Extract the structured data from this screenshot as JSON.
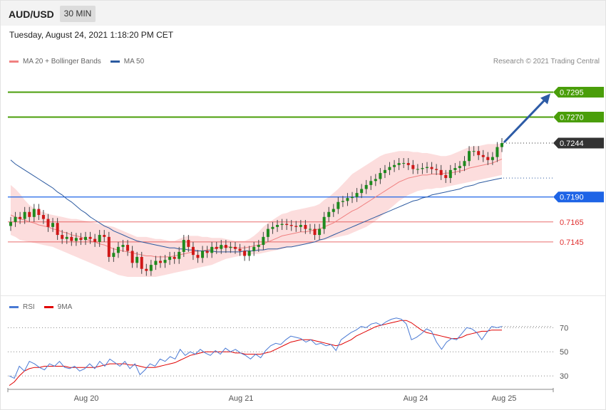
{
  "header": {
    "symbol": "AUD/USD",
    "timeframe": "30 MIN"
  },
  "datetime": "Tuesday, August 24, 2021 1:18:20 PM CET",
  "legend": {
    "ma20": {
      "label": "MA 20 + Bollinger Bands",
      "color": "#f08080"
    },
    "ma50": {
      "label": "MA 50",
      "color": "#2c5aa0"
    }
  },
  "credit": "Research © 2021 Trading Central",
  "rsi_legend": {
    "rsi": {
      "label": "RSI",
      "color": "#4a7ad4"
    },
    "ma9": {
      "label": "9MA",
      "color": "#e00000"
    }
  },
  "chart_data": {
    "type": "candlestick",
    "x_labels": [
      "Aug 20",
      "Aug 21",
      "Aug 24",
      "Aug 25"
    ],
    "ylim": [
      0.7095,
      0.7316
    ],
    "levels": [
      {
        "value": 0.7295,
        "label": "0.7295",
        "color": "#4a9e0a",
        "style": "tag"
      },
      {
        "value": 0.727,
        "label": "0.7270",
        "color": "#4a9e0a",
        "style": "tag"
      },
      {
        "value": 0.7244,
        "label": "0.7244",
        "color": "#333333",
        "style": "current"
      },
      {
        "value": 0.719,
        "label": "0.7190",
        "color": "#1e64e6",
        "style": "tag"
      },
      {
        "value": 0.7165,
        "label": "0.7165",
        "color": "#e03030",
        "style": "text"
      },
      {
        "value": 0.7145,
        "label": "0.7145",
        "color": "#e03030",
        "style": "text"
      }
    ],
    "closes": [
      0.7165,
      0.717,
      0.7168,
      0.7175,
      0.717,
      0.7178,
      0.7172,
      0.7168,
      0.716,
      0.7164,
      0.7152,
      0.7148,
      0.715,
      0.7146,
      0.7149,
      0.7147,
      0.715,
      0.7148,
      0.7145,
      0.7152,
      0.715,
      0.713,
      0.7134,
      0.714,
      0.7142,
      0.7136,
      0.7124,
      0.713,
      0.7118,
      0.7116,
      0.7122,
      0.7126,
      0.7124,
      0.7127,
      0.713,
      0.7128,
      0.7135,
      0.7147,
      0.714,
      0.7132,
      0.7129,
      0.7136,
      0.7134,
      0.714,
      0.7138,
      0.7142,
      0.7139,
      0.714,
      0.7138,
      0.7136,
      0.7131,
      0.7136,
      0.714,
      0.7142,
      0.715,
      0.7158,
      0.716,
      0.7162,
      0.7163,
      0.7162,
      0.7161,
      0.716,
      0.7162,
      0.7158,
      0.7158,
      0.7152,
      0.7158,
      0.717,
      0.7175,
      0.7178,
      0.7185,
      0.7186,
      0.7189,
      0.719,
      0.7194,
      0.7198,
      0.7202,
      0.7206,
      0.7208,
      0.7214,
      0.7217,
      0.722,
      0.7222,
      0.7224,
      0.7224,
      0.7222,
      0.7218,
      0.7218,
      0.7219,
      0.722,
      0.7218,
      0.7217,
      0.7212,
      0.7209,
      0.7217,
      0.7219,
      0.7221,
      0.7226,
      0.7236,
      0.7236,
      0.7232,
      0.723,
      0.7227,
      0.723,
      0.724,
      0.7244
    ],
    "ma20": [
      0.7172,
      0.717,
      0.7168,
      0.7167,
      0.7165,
      0.7164,
      0.7162,
      0.7161,
      0.716,
      0.7158,
      0.7157,
      0.7155,
      0.7154,
      0.7152,
      0.7151,
      0.715,
      0.7148,
      0.7146,
      0.7145,
      0.7143,
      0.7142,
      0.714,
      0.7138,
      0.7137,
      0.7136,
      0.7135,
      0.7134,
      0.7133,
      0.7132,
      0.7131,
      0.7131,
      0.713,
      0.713,
      0.713,
      0.713,
      0.7131,
      0.7132,
      0.7133,
      0.7134,
      0.7135,
      0.7136,
      0.7136,
      0.7137,
      0.7138,
      0.7139,
      0.714,
      0.714,
      0.714,
      0.7139,
      0.7139,
      0.7139,
      0.714,
      0.7141,
      0.7142,
      0.7143,
      0.7145,
      0.7147,
      0.7149,
      0.7151,
      0.7152,
      0.7153,
      0.7154,
      0.7155,
      0.7155,
      0.7156,
      0.7157,
      0.7158,
      0.716,
      0.7162,
      0.7164,
      0.7167,
      0.717,
      0.7173,
      0.7176,
      0.7178,
      0.7181,
      0.7184,
      0.7187,
      0.719,
      0.7193,
      0.7196,
      0.7199,
      0.7202,
      0.7205,
      0.7207,
      0.7209,
      0.721,
      0.7211,
      0.7212,
      0.7212,
      0.7213,
      0.7213,
      0.7213,
      0.7214,
      0.7214,
      0.7215,
      0.7216,
      0.7217,
      0.7219,
      0.722,
      0.7221,
      0.7222,
      0.7223,
      0.7224,
      0.7226,
      0.7228
    ],
    "band_upper": [
      0.7202,
      0.7198,
      0.7193,
      0.7187,
      0.7182,
      0.7179,
      0.7176,
      0.7175,
      0.7173,
      0.7172,
      0.7171,
      0.717,
      0.7169,
      0.7168,
      0.7168,
      0.7167,
      0.7166,
      0.7165,
      0.7164,
      0.7163,
      0.7162,
      0.7161,
      0.716,
      0.7158,
      0.7156,
      0.7154,
      0.7152,
      0.715,
      0.715,
      0.715,
      0.7149,
      0.7148,
      0.7148,
      0.7147,
      0.7146,
      0.7146,
      0.7148,
      0.715,
      0.7151,
      0.7151,
      0.7151,
      0.715,
      0.715,
      0.7149,
      0.7149,
      0.7149,
      0.7148,
      0.7147,
      0.7146,
      0.7146,
      0.7146,
      0.7148,
      0.7151,
      0.7155,
      0.716,
      0.7164,
      0.7167,
      0.717,
      0.7173,
      0.7174,
      0.7176,
      0.7177,
      0.7178,
      0.7179,
      0.718,
      0.7181,
      0.7183,
      0.7187,
      0.719,
      0.7194,
      0.7198,
      0.7203,
      0.7208,
      0.7213,
      0.7216,
      0.7219,
      0.7222,
      0.7225,
      0.7228,
      0.7231,
      0.7233,
      0.7234,
      0.7235,
      0.7236,
      0.7236,
      0.7236,
      0.7235,
      0.7235,
      0.7234,
      0.7234,
      0.7233,
      0.7232,
      0.7231,
      0.7231,
      0.7232,
      0.7234,
      0.7236,
      0.7238,
      0.724,
      0.7241,
      0.7241,
      0.7242,
      0.7243,
      0.7243,
      0.7243,
      0.7244
    ],
    "band_lower": [
      0.7152,
      0.715,
      0.7147,
      0.7146,
      0.7145,
      0.7144,
      0.7143,
      0.7142,
      0.7141,
      0.714,
      0.7138,
      0.7136,
      0.7134,
      0.7132,
      0.713,
      0.7128,
      0.7126,
      0.7124,
      0.7122,
      0.712,
      0.7118,
      0.7116,
      0.7114,
      0.7112,
      0.7111,
      0.711,
      0.711,
      0.711,
      0.711,
      0.711,
      0.711,
      0.711,
      0.7111,
      0.7112,
      0.7113,
      0.7114,
      0.7115,
      0.7116,
      0.7117,
      0.7118,
      0.7119,
      0.712,
      0.7121,
      0.7122,
      0.7124,
      0.7126,
      0.7128,
      0.7129,
      0.713,
      0.7131,
      0.7132,
      0.7132,
      0.7133,
      0.7133,
      0.7134,
      0.7135,
      0.7136,
      0.7137,
      0.7138,
      0.7139,
      0.714,
      0.7141,
      0.7142,
      0.7143,
      0.7144,
      0.7145,
      0.7146,
      0.7147,
      0.7148,
      0.7149,
      0.715,
      0.7151,
      0.7152,
      0.7154,
      0.7156,
      0.7158,
      0.716,
      0.7163,
      0.7166,
      0.717,
      0.7174,
      0.7178,
      0.7182,
      0.7186,
      0.7189,
      0.7192,
      0.7194,
      0.7196,
      0.7197,
      0.7198,
      0.7198,
      0.7199,
      0.7199,
      0.72,
      0.7201,
      0.7202,
      0.7203,
      0.7204,
      0.7205,
      0.7206,
      0.7207,
      0.7208,
      0.7209,
      0.721,
      0.7211,
      0.7212
    ],
    "ma50": [
      0.7227,
      0.7223,
      0.722,
      0.7217,
      0.7214,
      0.7211,
      0.7208,
      0.7205,
      0.7202,
      0.7199,
      0.7195,
      0.7192,
      0.7188,
      0.7185,
      0.7181,
      0.7177,
      0.7174,
      0.717,
      0.7167,
      0.7164,
      0.7161,
      0.7159,
      0.7156,
      0.7154,
      0.7152,
      0.715,
      0.7148,
      0.7146,
      0.7145,
      0.7144,
      0.7143,
      0.7142,
      0.7141,
      0.714,
      0.7139,
      0.7139,
      0.7138,
      0.7138,
      0.7137,
      0.7137,
      0.7136,
      0.7136,
      0.7136,
      0.7136,
      0.7135,
      0.7135,
      0.7135,
      0.7135,
      0.7135,
      0.7135,
      0.7136,
      0.7136,
      0.7136,
      0.7137,
      0.7137,
      0.7138,
      0.7138,
      0.7138,
      0.7139,
      0.714,
      0.714,
      0.7141,
      0.7142,
      0.7143,
      0.7144,
      0.7145,
      0.7147,
      0.7148,
      0.715,
      0.7152,
      0.7154,
      0.7156,
      0.7158,
      0.716,
      0.7162,
      0.7164,
      0.7166,
      0.7168,
      0.717,
      0.7172,
      0.7174,
      0.7176,
      0.7178,
      0.718,
      0.7182,
      0.7184,
      0.7186,
      0.7187,
      0.7189,
      0.719,
      0.7192,
      0.7193,
      0.7194,
      0.7195,
      0.7196,
      0.7197,
      0.7198,
      0.72,
      0.7201,
      0.7202,
      0.7204,
      0.7205,
      0.7206,
      0.7207,
      0.7208,
      0.7209
    ],
    "forecast": {
      "from": 0.7244,
      "to": 0.7295
    },
    "rsi": {
      "levels": [
        70,
        50,
        30
      ],
      "ylim": [
        20,
        82
      ],
      "rsi": [
        30,
        28,
        38,
        34,
        42,
        40,
        37,
        35,
        40,
        38,
        42,
        37,
        36,
        38,
        34,
        36,
        40,
        36,
        42,
        38,
        44,
        41,
        38,
        42,
        36,
        40,
        31,
        35,
        40,
        38,
        44,
        42,
        46,
        44,
        52,
        47,
        50,
        48,
        52,
        49,
        47,
        51,
        48,
        53,
        50,
        52,
        49,
        47,
        44,
        48,
        45,
        51,
        55,
        57,
        56,
        60,
        63,
        62,
        61,
        58,
        60,
        56,
        57,
        55,
        56,
        51,
        60,
        63,
        66,
        68,
        71,
        70,
        73,
        74,
        72,
        75,
        77,
        78,
        77,
        73,
        60,
        62,
        65,
        69,
        67,
        58,
        52,
        58,
        61,
        60,
        65,
        70,
        69,
        66,
        60,
        66,
        71,
        70,
        71
      ],
      "ma9": [
        22,
        25,
        30,
        34,
        36,
        37,
        37,
        38,
        38,
        38,
        38,
        38,
        37,
        37,
        37,
        37,
        37,
        37,
        38,
        39,
        40,
        40,
        40,
        40,
        39,
        39,
        38,
        37,
        37,
        37,
        38,
        39,
        40,
        41,
        43,
        45,
        47,
        48,
        49,
        50,
        50,
        50,
        50,
        50,
        50,
        49,
        49,
        48,
        48,
        48,
        48,
        49,
        50,
        52,
        54,
        56,
        58,
        59,
        60,
        60,
        60,
        59,
        58,
        57,
        56,
        55,
        56,
        58,
        60,
        63,
        65,
        67,
        69,
        71,
        72,
        73,
        74,
        75,
        76,
        76,
        74,
        71,
        68,
        66,
        65,
        64,
        63,
        62,
        61,
        61,
        62,
        64,
        65,
        66,
        67,
        67,
        68,
        68,
        68
      ]
    }
  }
}
